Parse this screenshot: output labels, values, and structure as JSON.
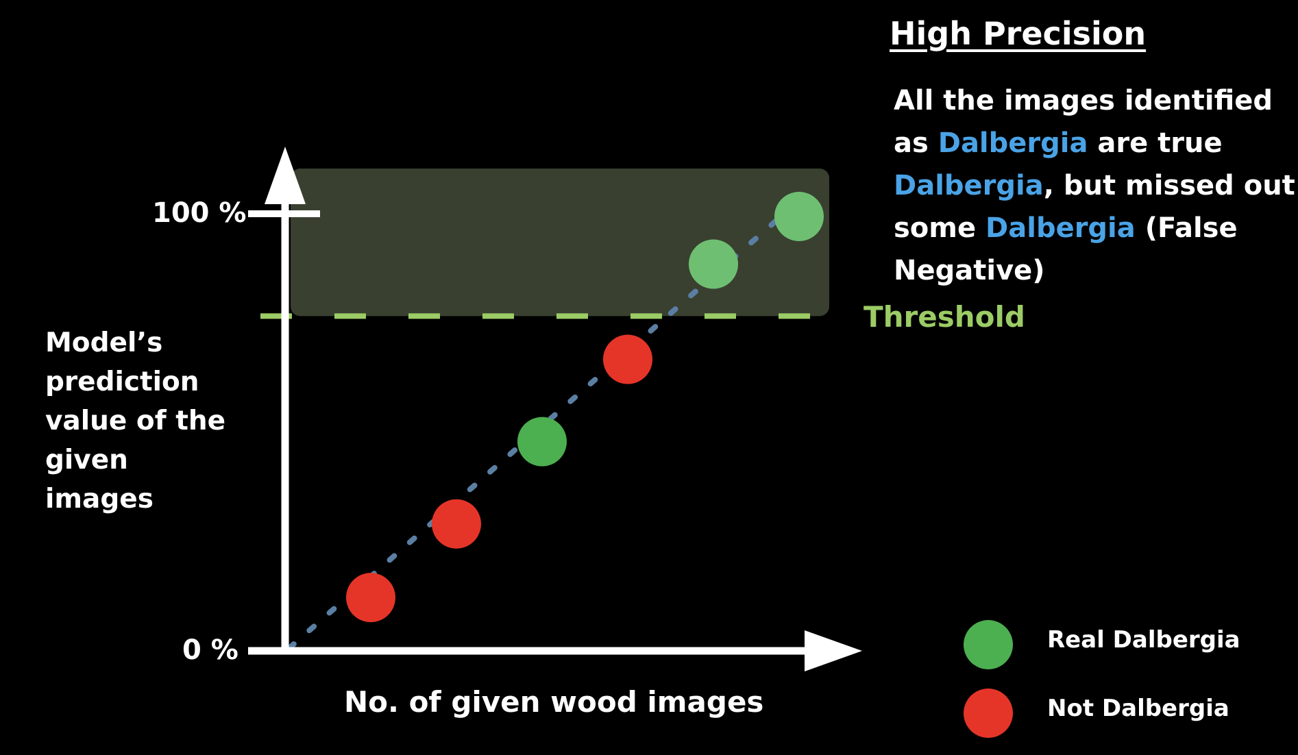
{
  "title": "High Precision",
  "description": {
    "t1": "All the images identified as ",
    "h1": "Dalbergia",
    "t2": " are true ",
    "h2": "Dalbergia",
    "t3": ", but missed out some ",
    "h3": "Dalbergia",
    "t4": " (False Negative)"
  },
  "threshold_label": "Threshold",
  "y_axis": {
    "top_label": "100 %",
    "bottom_label": "0 %",
    "title": "Model’s prediction value of the given images"
  },
  "x_axis": {
    "title": "No. of given wood images"
  },
  "legend": [
    {
      "label": "Real Dalbergia",
      "color": "#4caf50"
    },
    {
      "label": "Not Dalbergia",
      "color": "#e53528"
    }
  ],
  "colors": {
    "highlight": "#4aa3e6",
    "threshold": "#9ccc65",
    "region": "#39402f",
    "trend": "#5b7fa3",
    "real": "#4caf50",
    "not": "#e53528",
    "real_in_region": "#6fbf73"
  },
  "chart_data": {
    "type": "scatter",
    "ylim": [
      0,
      100
    ],
    "threshold": 77,
    "points": [
      {
        "x": 1,
        "y": 12,
        "class": "Not Dalbergia"
      },
      {
        "x": 2,
        "y": 29,
        "class": "Not Dalbergia"
      },
      {
        "x": 3,
        "y": 48,
        "class": "Real Dalbergia"
      },
      {
        "x": 4,
        "y": 67,
        "class": "Not Dalbergia"
      },
      {
        "x": 5,
        "y": 89,
        "class": "Real Dalbergia"
      },
      {
        "x": 6,
        "y": 100,
        "class": "Real Dalbergia"
      }
    ]
  }
}
